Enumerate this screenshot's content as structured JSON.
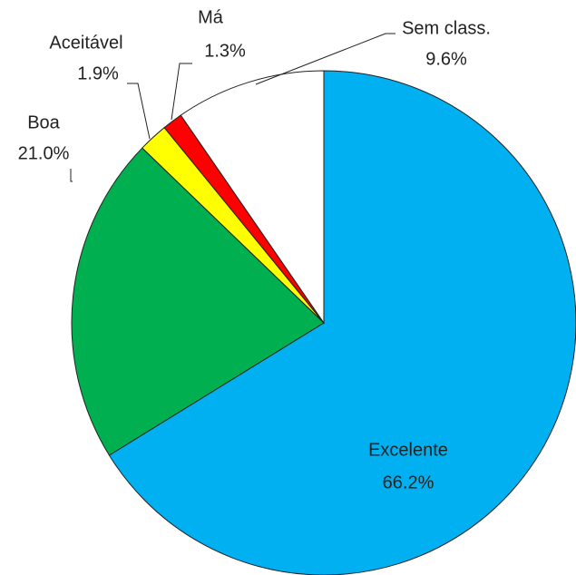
{
  "chart_data": {
    "type": "pie",
    "categories": [
      "Excelente",
      "Boa",
      "Aceitável",
      "Má",
      "Sem class."
    ],
    "values": [
      66.2,
      21.0,
      1.9,
      1.3,
      9.6
    ],
    "value_labels": [
      "66.2%",
      "21.0%",
      "1.9%",
      "1.3%",
      "9.6%"
    ],
    "colors": [
      "#00b0f0",
      "#00b050",
      "#ffff00",
      "#ff0000",
      "#ffffff"
    ]
  }
}
